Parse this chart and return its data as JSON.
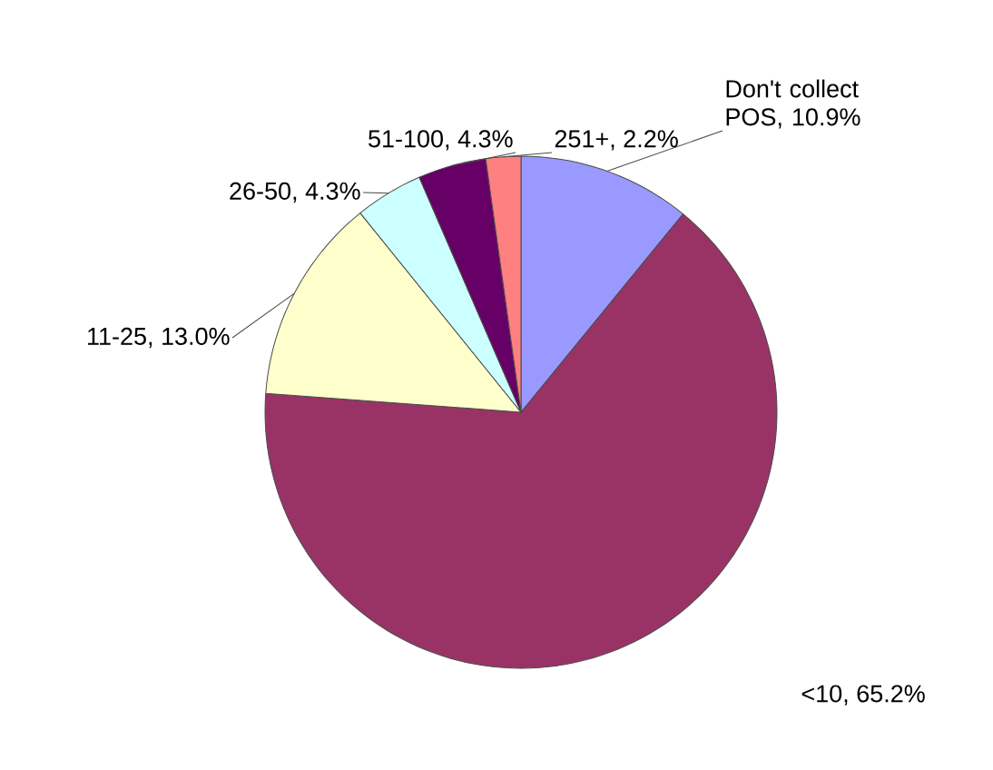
{
  "chart_data": {
    "type": "pie",
    "categories": [
      "Don't collect POS",
      "<10",
      "11-25",
      "26-50",
      "51-100",
      "251+"
    ],
    "values": [
      10.9,
      65.2,
      13.0,
      4.3,
      4.3,
      2.2
    ],
    "value_labels": [
      ", 10.9%",
      ", 65.2%",
      ", 13.0%",
      ", 4.3%",
      ", 4.3%",
      ", 2.2%"
    ],
    "colors": [
      "#9999ff",
      "#993366",
      "#ffffcc",
      "#ccffff",
      "#660066",
      "#ff8080"
    ],
    "legend": false
  }
}
